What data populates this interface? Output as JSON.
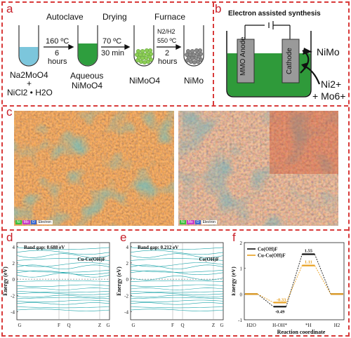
{
  "panels": {
    "a": "a",
    "b": "b",
    "c": "c",
    "d": "d",
    "e": "e",
    "f": "f"
  },
  "panel_a": {
    "autoclave": "Autoclave",
    "drying": "Drying",
    "furnace": "Furnace",
    "cond1_temp": "160 ºC",
    "cond1_time": "6",
    "cond1_unit": "hours",
    "cond2_temp": "70 ºC",
    "cond2_time": "30 min",
    "cond3_gas": "N2/H2",
    "cond3_temp": "550 ºC",
    "cond3_time": "2",
    "cond3_unit": "hours",
    "precursor1": "Na2MoO4",
    "precursor_plus": "+",
    "precursor2": "NiCl2 • H2O",
    "aq1": "Aqueous",
    "aq2": "NiMoO4",
    "dried": "NiMoO4",
    "product": "NiMo"
  },
  "panel_b": {
    "title": "Electron assisted synthesis",
    "anode": "MMO Anode",
    "cathode": "Cathode",
    "product": "NiMo",
    "ions1": "Ni2+",
    "ions2": "+ Mo6+"
  },
  "panel_c": {
    "legend_left": [
      "Ni",
      "Mo",
      "O",
      "Electron"
    ],
    "legend_right": [
      "Ni",
      "Mo",
      "O",
      "Electron"
    ]
  },
  "panel_d": {
    "band_gap": "Band gap: 0.688 eV",
    "material": "Cu-Co(OH)F",
    "ylabel": "Energy (eV)",
    "yticks": [
      "4",
      "2",
      "0",
      "-2",
      "-4"
    ],
    "xticks": [
      "G",
      "F",
      "Q",
      "Z",
      "G"
    ]
  },
  "panel_e": {
    "band_gap": "Band gap: 0.212 eV",
    "material": "Co(OH)F",
    "ylabel": "Energy (eV)",
    "yticks": [
      "4",
      "2",
      "0",
      "-2",
      "-4"
    ],
    "xticks": [
      "G",
      "F",
      "Q",
      "Z",
      "G"
    ]
  },
  "chart_data": {
    "type": "line",
    "title": "",
    "xlabel": "Reaction coordinate",
    "ylabel": "Energy (eV)",
    "ylim": [
      -1,
      2
    ],
    "yticks": [
      "2",
      "1",
      "0",
      "-1"
    ],
    "categories": [
      "H2O",
      "H-OH*",
      "*H",
      "H2"
    ],
    "series": [
      {
        "name": "Co(OH)F",
        "color": "#111111",
        "values": [
          0,
          -0.49,
          1.55,
          0
        ]
      },
      {
        "name": "Cu-Co(OH)F",
        "color": "#e8a020",
        "values": [
          0,
          -0.33,
          1.11,
          0
        ]
      }
    ],
    "data_labels": {
      "co_min": "-0.49",
      "cu_min": "-0.33",
      "co_max": "1.55",
      "cu_max": "1.11"
    },
    "legend_position": "top-left"
  },
  "colors": {
    "accent_red": "#c8202a",
    "electrolyte_green": "#2f9a3a",
    "band_cyan": "#1aa3a8",
    "orange": "#e8a020"
  }
}
